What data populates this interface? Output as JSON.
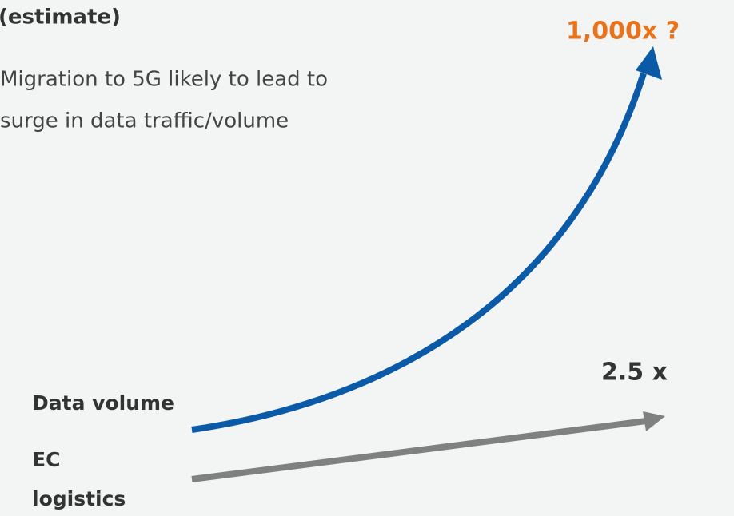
{
  "header": {
    "note": "(estimate)"
  },
  "description": [
    "Migration to 5G likely to lead to",
    "surge in data traffic/volume"
  ],
  "data_volume": {
    "label": "Data volume",
    "growth": "1,000x ?"
  },
  "ec_logistics": {
    "label": [
      "EC",
      "logistics"
    ],
    "growth": "2.5 x"
  }
}
